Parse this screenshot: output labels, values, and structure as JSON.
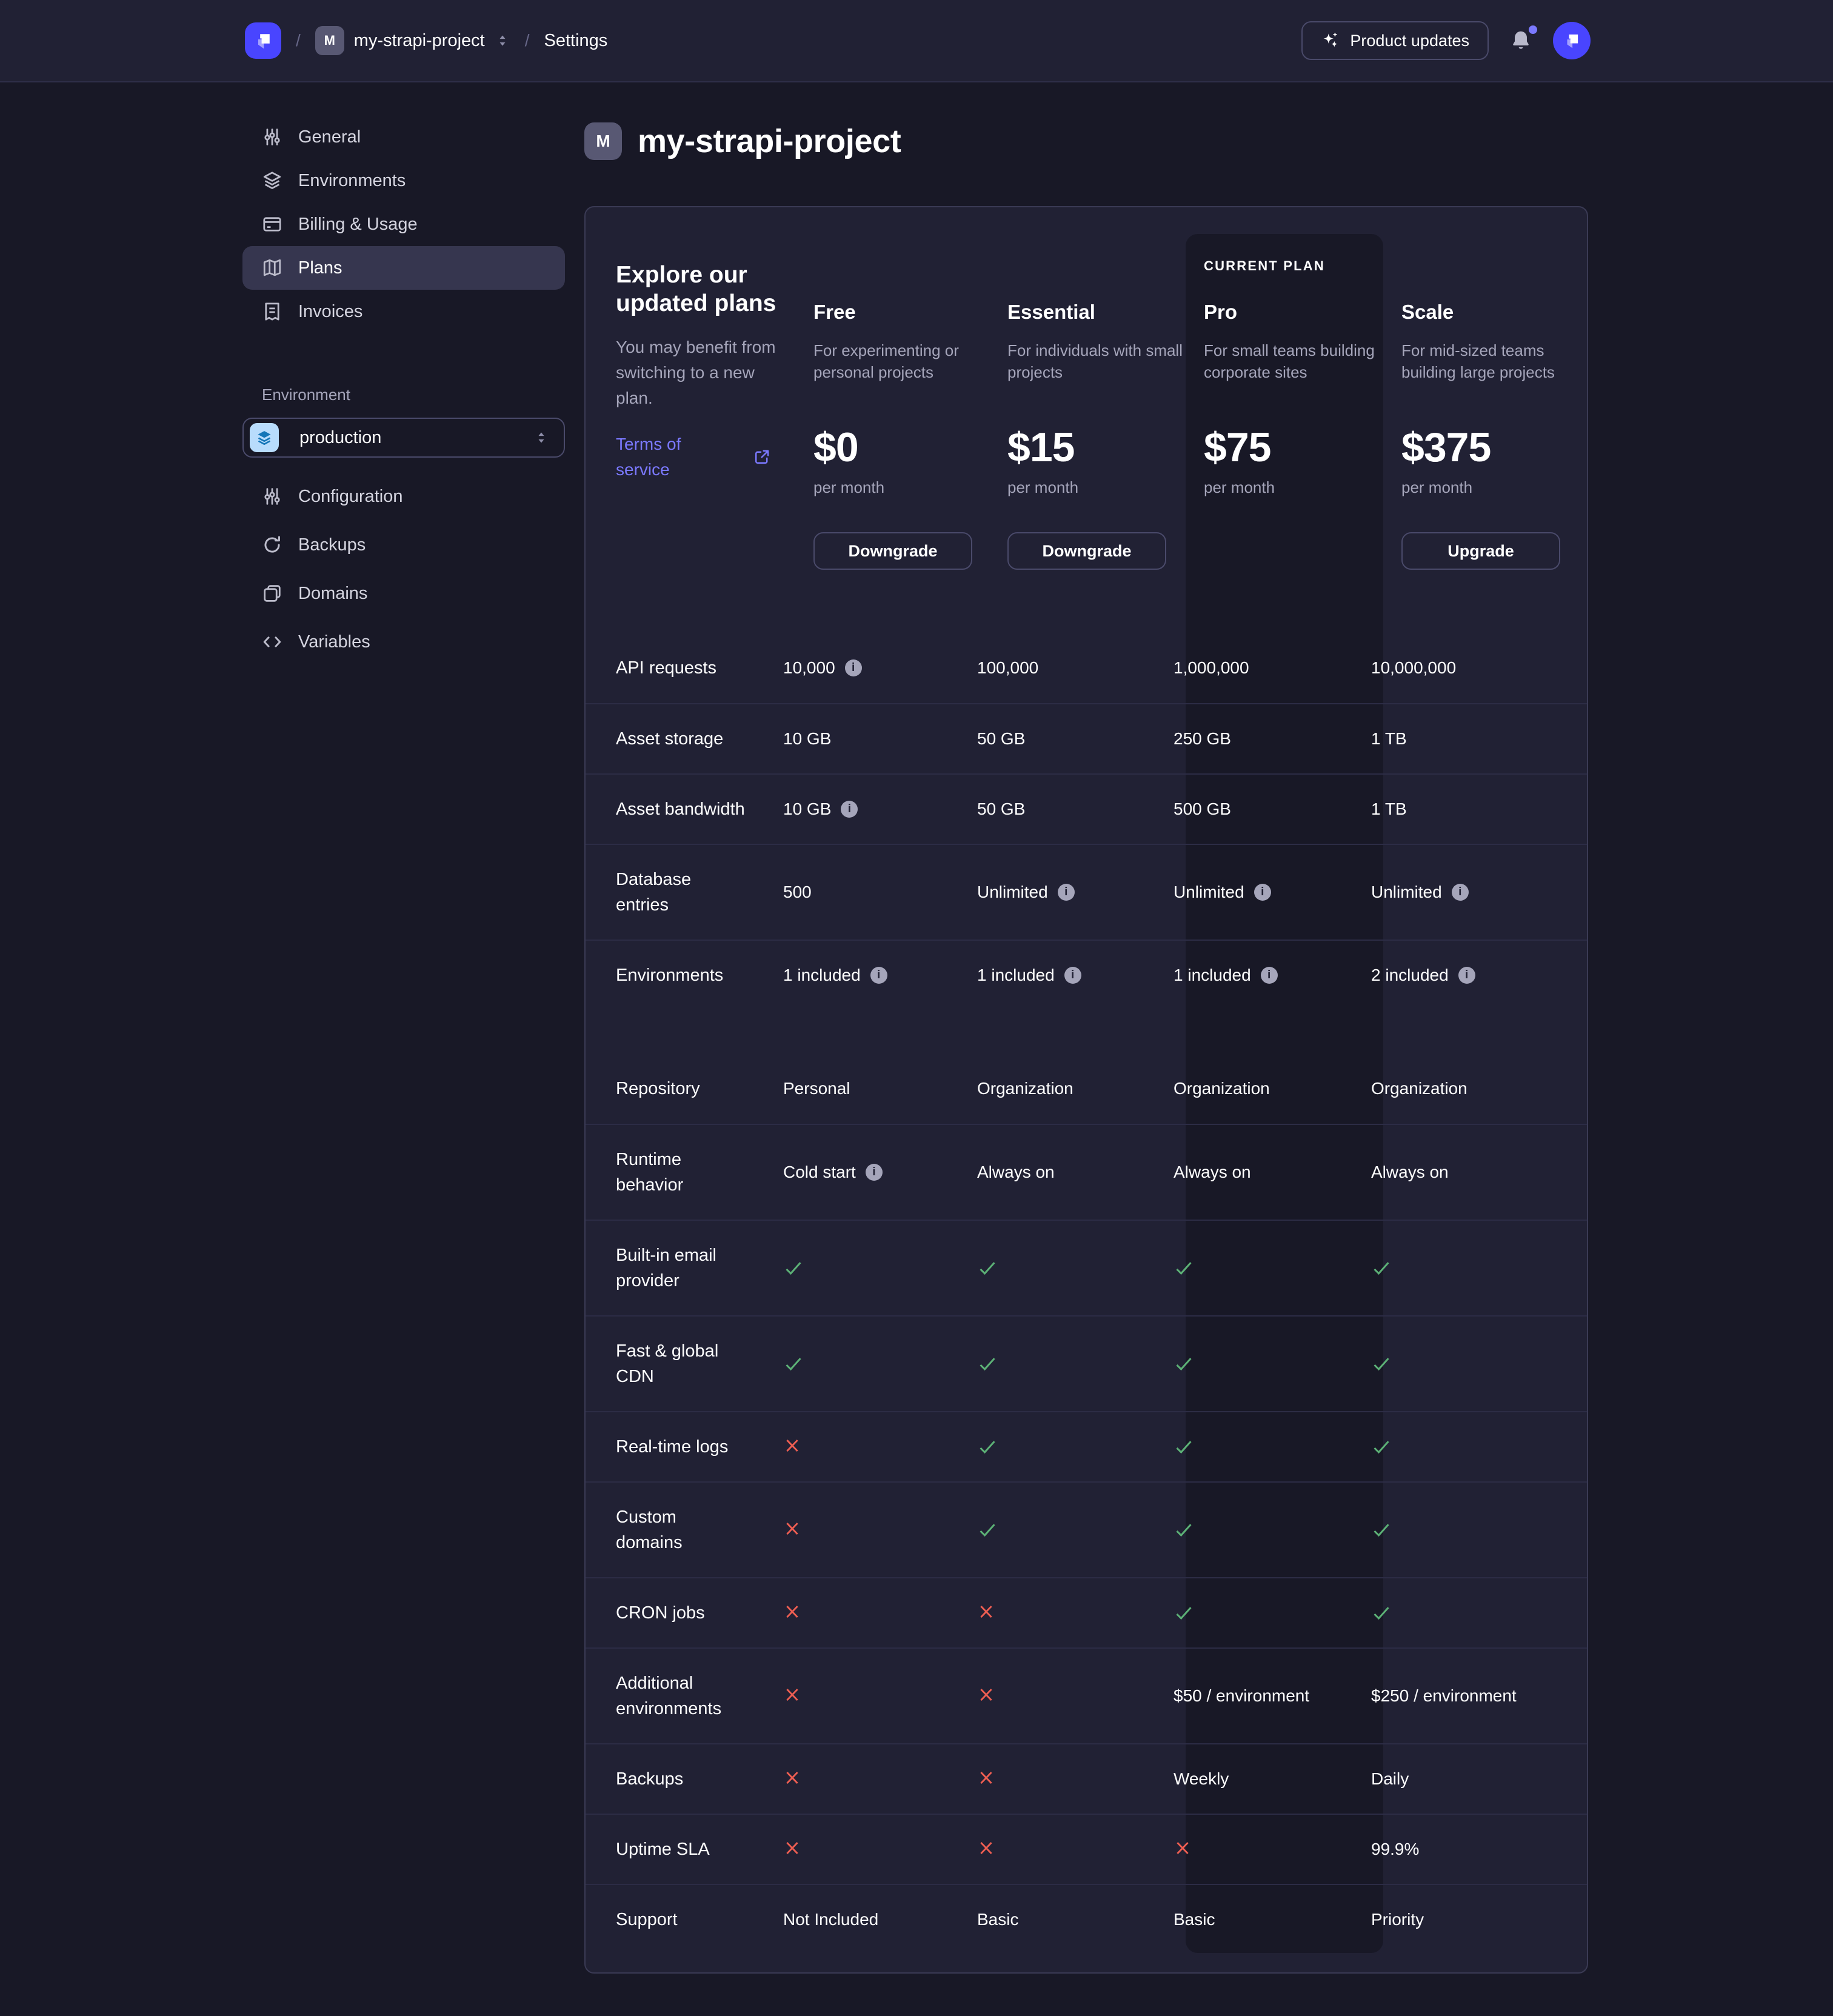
{
  "header": {
    "breadcrumb": {
      "separator": "/",
      "project_badge": "M",
      "project": "my-strapi-project",
      "section": "Settings"
    },
    "product_updates_label": "Product updates"
  },
  "sidebar": {
    "items": [
      {
        "label": "General",
        "icon": "sliders-icon",
        "active": false
      },
      {
        "label": "Environments",
        "icon": "layers-icon",
        "active": false
      },
      {
        "label": "Billing & Usage",
        "icon": "card-icon",
        "active": false
      },
      {
        "label": "Plans",
        "icon": "map-icon",
        "active": true
      },
      {
        "label": "Invoices",
        "icon": "invoice-icon",
        "active": false
      }
    ],
    "environment_label": "Environment",
    "environment": {
      "value": "production",
      "icon": "layers-icon"
    },
    "env_items": [
      {
        "label": "Configuration",
        "icon": "sliders-icon"
      },
      {
        "label": "Backups",
        "icon": "refresh-icon"
      },
      {
        "label": "Domains",
        "icon": "stack-icon"
      },
      {
        "label": "Variables",
        "icon": "code-icon"
      }
    ]
  },
  "page": {
    "badge": "M",
    "title": "my-strapi-project"
  },
  "plans": {
    "intro": {
      "title": "Explore our updated plans",
      "subtitle": "You may benefit from switching to a new plan.",
      "link_label": "Terms of service"
    },
    "current_plan_label": "CURRENT PLAN",
    "columns": [
      {
        "name": "Free",
        "description": "For experimenting or personal projects",
        "price": "$0",
        "period": "per month",
        "action": "Downgrade",
        "current": false
      },
      {
        "name": "Essential",
        "description": "For individuals with small projects",
        "price": "$15",
        "period": "per month",
        "action": "Downgrade",
        "current": false
      },
      {
        "name": "Pro",
        "description": "For small teams building corporate sites",
        "price": "$75",
        "period": "per month",
        "action": null,
        "current": true
      },
      {
        "name": "Scale",
        "description": "For mid-sized teams building large projects",
        "price": "$375",
        "period": "per month",
        "action": "Upgrade",
        "current": false
      }
    ],
    "features": [
      {
        "label": "API requests",
        "values": [
          {
            "text": "10,000",
            "info": true
          },
          {
            "text": "100,000"
          },
          {
            "text": "1,000,000"
          },
          {
            "text": "10,000,000"
          }
        ]
      },
      {
        "label": "Asset storage",
        "values": [
          {
            "text": "10 GB"
          },
          {
            "text": "50 GB"
          },
          {
            "text": "250 GB"
          },
          {
            "text": "1 TB"
          }
        ]
      },
      {
        "label": "Asset bandwidth",
        "values": [
          {
            "text": "10 GB",
            "info": true
          },
          {
            "text": "50 GB"
          },
          {
            "text": "500 GB"
          },
          {
            "text": "1 TB"
          }
        ]
      },
      {
        "label": "Database entries",
        "values": [
          {
            "text": "500"
          },
          {
            "text": "Unlimited",
            "info": true
          },
          {
            "text": "Unlimited",
            "info": true
          },
          {
            "text": "Unlimited",
            "info": true
          }
        ]
      },
      {
        "label": "Environments",
        "group_end": true,
        "values": [
          {
            "text": "1 included",
            "info": true
          },
          {
            "text": "1 included",
            "info": true
          },
          {
            "text": "1 included",
            "info": true
          },
          {
            "text": "2 included",
            "info": true
          }
        ]
      },
      {
        "label": "Repository",
        "no_divider": true,
        "values": [
          {
            "text": "Personal"
          },
          {
            "text": "Organization"
          },
          {
            "text": "Organization"
          },
          {
            "text": "Organization"
          }
        ]
      },
      {
        "label": "Runtime behavior",
        "values": [
          {
            "text": "Cold start",
            "info": true
          },
          {
            "text": "Always on"
          },
          {
            "text": "Always on"
          },
          {
            "text": "Always on"
          }
        ]
      },
      {
        "label": "Built-in email provider",
        "values": [
          {
            "icon": "check"
          },
          {
            "icon": "check"
          },
          {
            "icon": "check"
          },
          {
            "icon": "check"
          }
        ]
      },
      {
        "label": "Fast & global CDN",
        "values": [
          {
            "icon": "check"
          },
          {
            "icon": "check"
          },
          {
            "icon": "check"
          },
          {
            "icon": "check"
          }
        ]
      },
      {
        "label": "Real-time logs",
        "values": [
          {
            "icon": "cross"
          },
          {
            "icon": "check"
          },
          {
            "icon": "check"
          },
          {
            "icon": "check"
          }
        ]
      },
      {
        "label": "Custom domains",
        "values": [
          {
            "icon": "cross"
          },
          {
            "icon": "check"
          },
          {
            "icon": "check"
          },
          {
            "icon": "check"
          }
        ]
      },
      {
        "label": "CRON jobs",
        "values": [
          {
            "icon": "cross"
          },
          {
            "icon": "cross"
          },
          {
            "icon": "check"
          },
          {
            "icon": "check"
          }
        ]
      },
      {
        "label": "Additional environments",
        "values": [
          {
            "icon": "cross"
          },
          {
            "icon": "cross"
          },
          {
            "text": "$50 / environment"
          },
          {
            "text": "$250 / environment"
          }
        ]
      },
      {
        "label": "Backups",
        "values": [
          {
            "icon": "cross"
          },
          {
            "icon": "cross"
          },
          {
            "text": "Weekly"
          },
          {
            "text": "Daily"
          }
        ]
      },
      {
        "label": "Uptime SLA",
        "values": [
          {
            "icon": "cross"
          },
          {
            "icon": "cross"
          },
          {
            "icon": "cross"
          },
          {
            "text": "99.9%"
          }
        ]
      },
      {
        "label": "Support",
        "values": [
          {
            "text": "Not Included"
          },
          {
            "text": "Basic"
          },
          {
            "text": "Basic"
          },
          {
            "text": "Priority"
          }
        ]
      }
    ]
  },
  "colors": {
    "accent": "#4945ff",
    "link": "#7b79ff",
    "success": "#5cb176",
    "danger": "#ee5e52"
  }
}
